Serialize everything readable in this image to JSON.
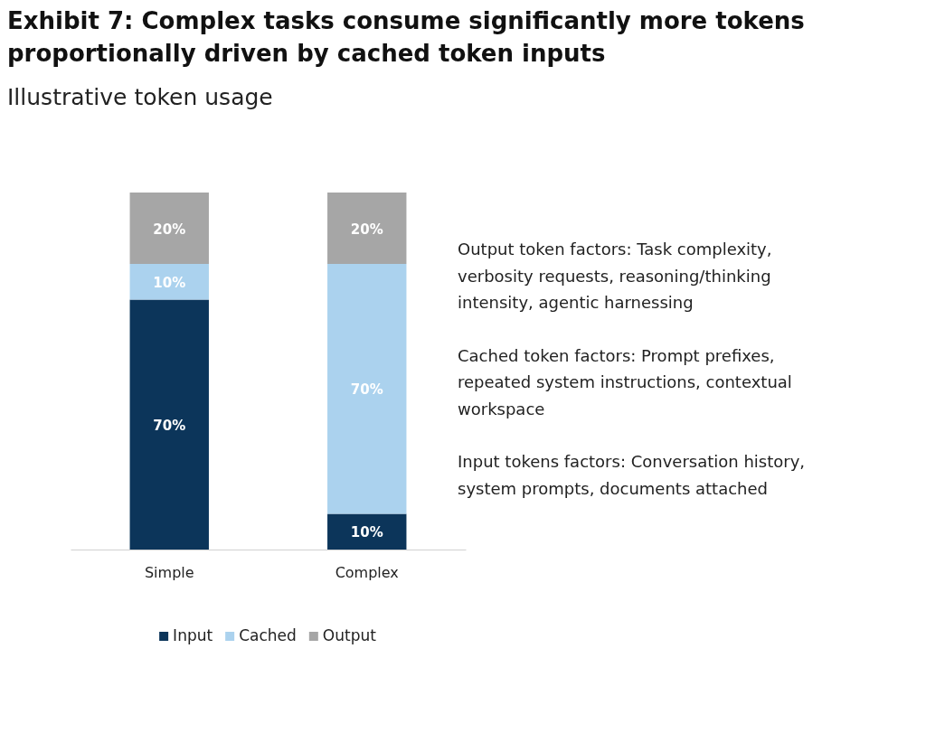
{
  "chart_data": {
    "type": "bar",
    "title": "Exhibit 7: Complex tasks consume significantly more tokens proportionally driven by cached token inputs",
    "subtitle": "Illustrative token usage",
    "categories": [
      "Simple",
      "Complex"
    ],
    "stacked": true,
    "legend": "bottom",
    "series": [
      {
        "name": "Input",
        "color": "#0c355a",
        "values": [
          70,
          10
        ],
        "value_labels": [
          "70%",
          "10%"
        ]
      },
      {
        "name": "Cached",
        "color": "#abd2ee",
        "values": [
          10,
          70
        ],
        "value_labels": [
          "10%",
          "70%"
        ]
      },
      {
        "name": "Output",
        "color": "#a6a6a6",
        "values": [
          20,
          20
        ],
        "value_labels": [
          "20%",
          "20%"
        ]
      }
    ],
    "annotations": [
      "Output token factors: Task complexity, verbosity requests, reasoning/thinking intensity, agentic harnessing",
      "Cached token factors: Prompt prefixes, repeated system instructions, contextual workspace",
      "Input tokens factors: Conversation history, system prompts, documents attached"
    ]
  }
}
